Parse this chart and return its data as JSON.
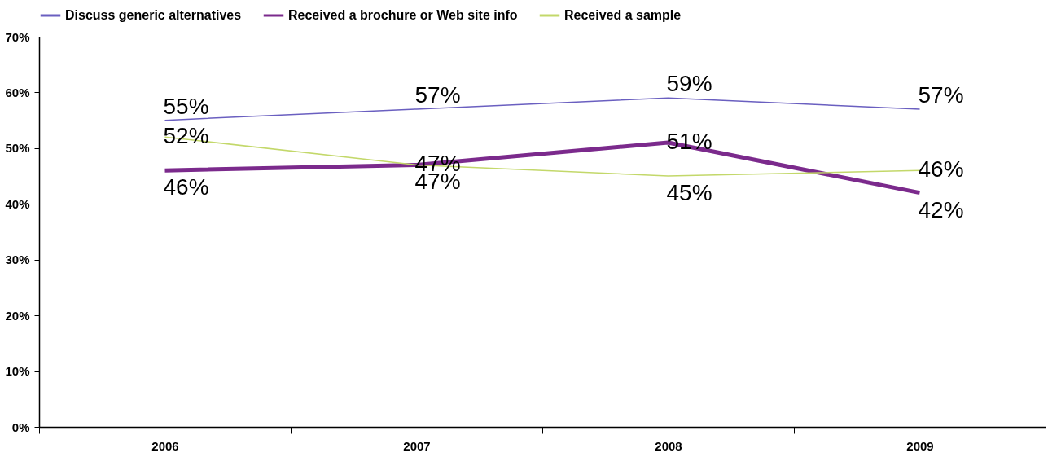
{
  "chart_data": {
    "type": "line",
    "categories": [
      "2006",
      "2007",
      "2008",
      "2009"
    ],
    "series": [
      {
        "name": "Discuss generic alternatives",
        "color": "#6a5fc0",
        "values": [
          55,
          57,
          59,
          57
        ],
        "value_labels": [
          "55%",
          "57%",
          "59%",
          "57%"
        ]
      },
      {
        "name": "Received a brochure or Web site info",
        "color": "#7b2a8c",
        "values": [
          46,
          47,
          51,
          42
        ],
        "value_labels": [
          "46%",
          "47%",
          "51%",
          "42%"
        ]
      },
      {
        "name": "Received a sample",
        "color": "#c3d86a",
        "values": [
          52,
          47,
          45,
          46
        ],
        "value_labels": [
          "52%",
          "47%",
          "45%",
          "46%"
        ]
      }
    ],
    "ylim": [
      0,
      70
    ],
    "yticks": [
      {
        "value": 0,
        "label": "0%"
      },
      {
        "value": 10,
        "label": "10%"
      },
      {
        "value": 20,
        "label": "20%"
      },
      {
        "value": 30,
        "label": "30%"
      },
      {
        "value": 40,
        "label": "40%"
      },
      {
        "value": 50,
        "label": "50%"
      },
      {
        "value": 60,
        "label": "60%"
      },
      {
        "value": 70,
        "label": "70%"
      }
    ],
    "grid": false,
    "legend": "top",
    "marker": "none",
    "line_style": "solid"
  }
}
